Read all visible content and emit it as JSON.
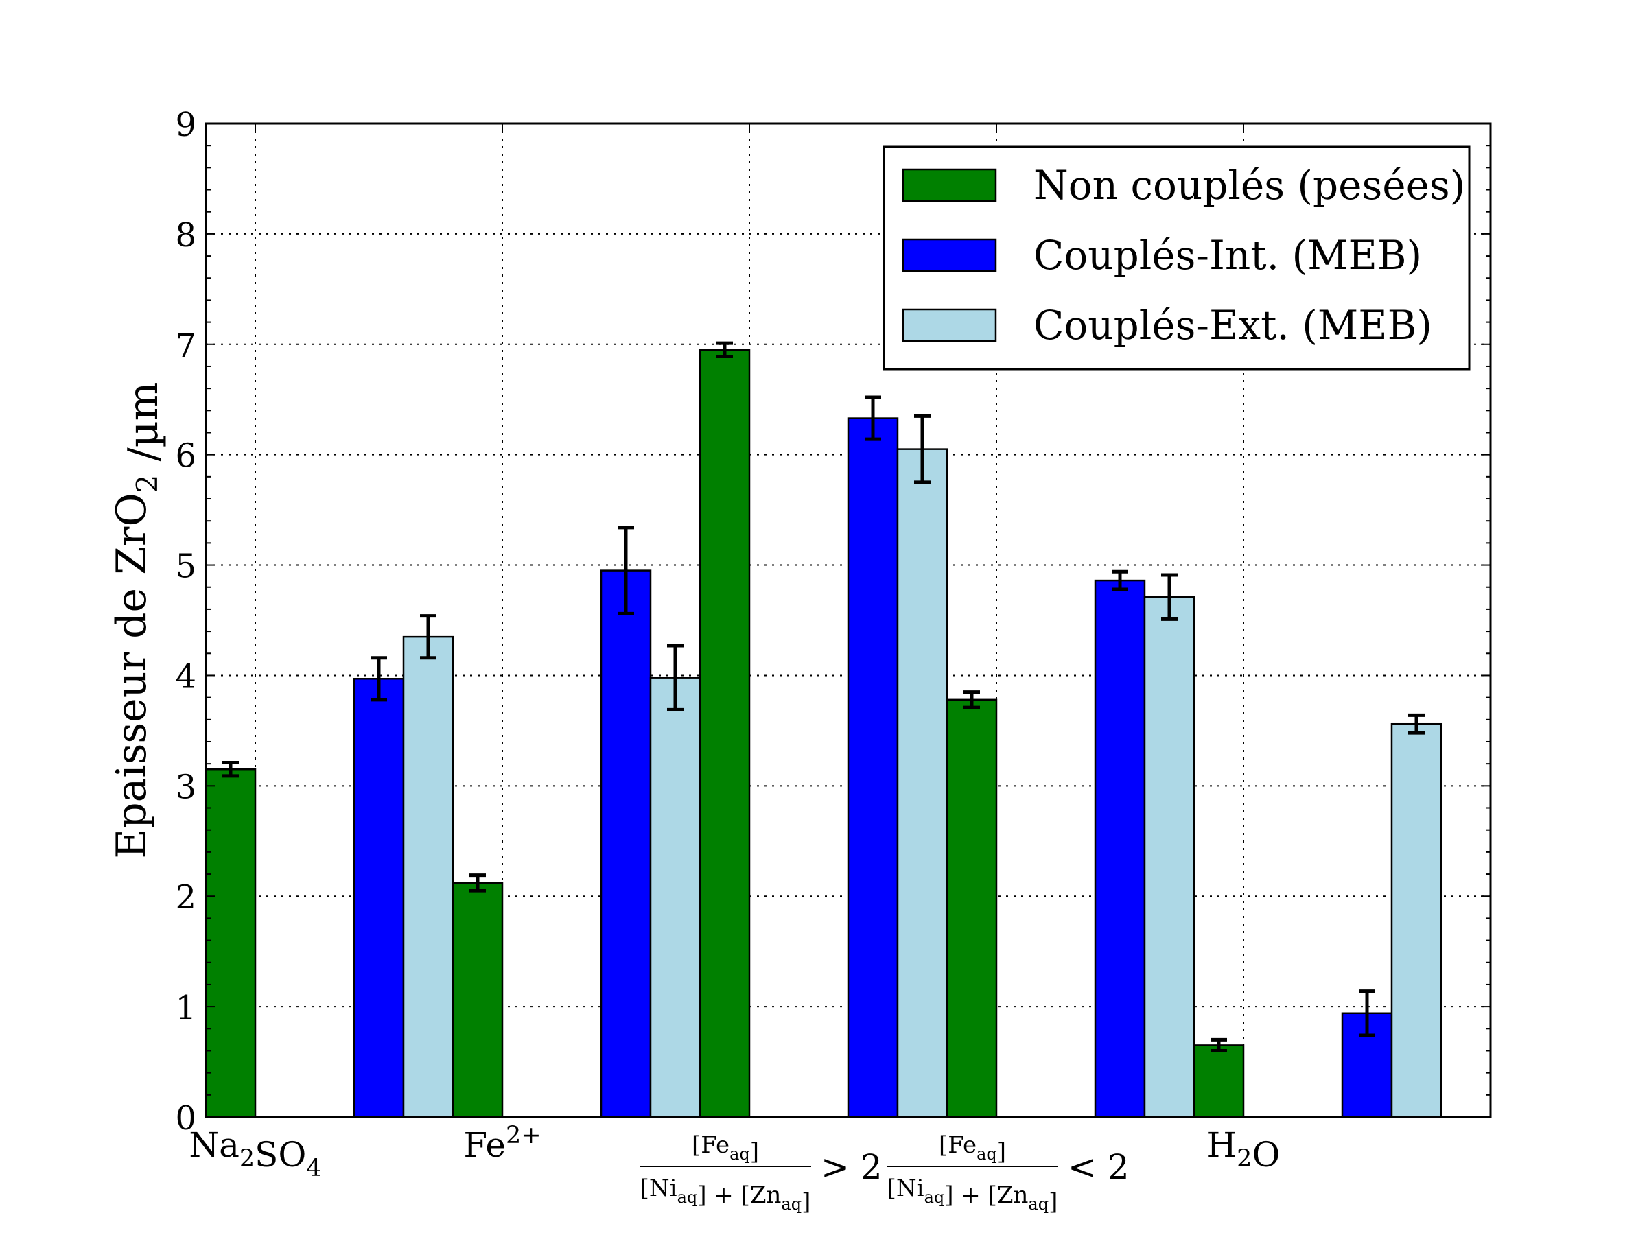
{
  "chart_data": {
    "type": "bar",
    "ylabel": "Epaisseur de ZrO",
    "ylabel_sub": "2",
    "ylabel_unit": " /µm",
    "ylim": [
      0,
      9
    ],
    "y_ticks": [
      0,
      1,
      2,
      3,
      4,
      5,
      6,
      7,
      8,
      9
    ],
    "grid": true,
    "legend_position": "top-right",
    "categories": [
      {
        "parts": [
          {
            "t": "Na"
          },
          {
            "t": "2",
            "s": "sub"
          },
          {
            "t": "SO"
          },
          {
            "t": "4",
            "s": "sub"
          }
        ]
      },
      {
        "parts": [
          {
            "t": "Fe"
          },
          {
            "t": "2+",
            "s": "sup"
          }
        ]
      },
      {
        "fraction": true,
        "numerator": [
          {
            "t": "[Fe"
          },
          {
            "t": "aq",
            "s": "sub"
          },
          {
            "t": "]"
          }
        ],
        "denominator": [
          {
            "t": "[Ni"
          },
          {
            "t": "aq",
            "s": "sub"
          },
          {
            "t": "] + [Zn"
          },
          {
            "t": "aq",
            "s": "sub"
          },
          {
            "t": "]"
          }
        ],
        "relation": "> 2"
      },
      {
        "fraction": true,
        "numerator": [
          {
            "t": "[Fe"
          },
          {
            "t": "aq",
            "s": "sub"
          },
          {
            "t": "]"
          }
        ],
        "denominator": [
          {
            "t": "[Ni"
          },
          {
            "t": "aq",
            "s": "sub"
          },
          {
            "t": "] + [Zn"
          },
          {
            "t": "aq",
            "s": "sub"
          },
          {
            "t": "]"
          }
        ],
        "relation": "< 2"
      },
      {
        "parts": [
          {
            "t": "H"
          },
          {
            "t": "2",
            "s": "sub"
          },
          {
            "t": "O"
          }
        ]
      }
    ],
    "series": [
      {
        "name": "Non couplés (pesées)",
        "color": "#008000",
        "values": [
          3.15,
          2.12,
          6.95,
          3.78,
          0.65
        ],
        "errors": [
          0.06,
          0.07,
          0.06,
          0.07,
          0.05
        ]
      },
      {
        "name": "Couplés-Int. (MEB)",
        "color": "#0000ff",
        "values": [
          3.97,
          4.95,
          6.33,
          4.86,
          0.94
        ],
        "errors": [
          0.19,
          0.39,
          0.19,
          0.08,
          0.2
        ]
      },
      {
        "name": "Couplés-Ext. (MEB)",
        "color": "#add8e6",
        "values": [
          4.35,
          3.98,
          6.05,
          4.71,
          3.56
        ],
        "errors": [
          0.19,
          0.29,
          0.3,
          0.2,
          0.08
        ]
      }
    ]
  }
}
